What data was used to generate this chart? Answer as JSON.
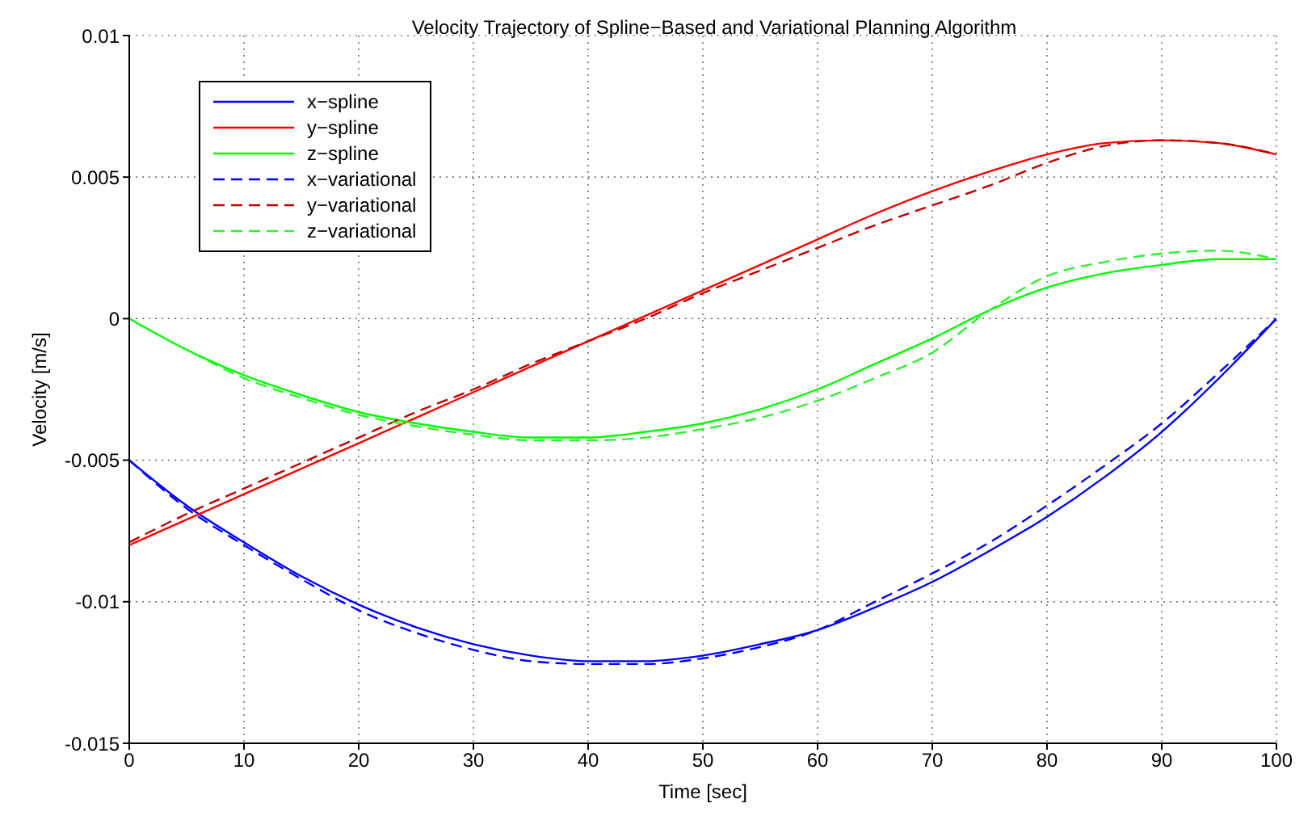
{
  "chart_data": {
    "type": "line",
    "title": "Velocity Trajectory of Spline−Based and Variational Planning Algorithm",
    "xlabel": "Time [sec]",
    "ylabel": "Velocity [m/s]",
    "xlim": [
      0,
      100
    ],
    "xticks": [
      0,
      10,
      20,
      30,
      40,
      50,
      60,
      70,
      80,
      90,
      100
    ],
    "ylim": [
      -0.015,
      0.01
    ],
    "yticks": [
      -0.015,
      -0.01,
      -0.005,
      0,
      0.005,
      0.01
    ],
    "grid": true,
    "legend": "top left",
    "marker": "none",
    "x": [
      0,
      5,
      10,
      15,
      20,
      25,
      30,
      35,
      40,
      45,
      50,
      55,
      60,
      65,
      70,
      75,
      80,
      85,
      90,
      95,
      100
    ],
    "series": [
      {
        "name": "x−spline",
        "color": "#0000ff",
        "line_style": "solid",
        "values": [
          -0.005,
          -0.0066,
          -0.0079,
          -0.0091,
          -0.0101,
          -0.0109,
          -0.0115,
          -0.0119,
          -0.0121,
          -0.0121,
          -0.0119,
          -0.0115,
          -0.011,
          -0.0102,
          -0.0093,
          -0.0082,
          -0.007,
          -0.0056,
          -0.004,
          -0.0021,
          0
        ]
      },
      {
        "name": "y−spline",
        "color": "#ff0000",
        "line_style": "solid",
        "values": [
          -0.008,
          -0.0071,
          -0.0062,
          -0.0053,
          -0.0044,
          -0.0035,
          -0.0026,
          -0.0017,
          -0.0008,
          0.0001,
          0.001,
          0.0019,
          0.0028,
          0.0037,
          0.0045,
          0.0052,
          0.0058,
          0.0062,
          0.0063,
          0.0062,
          0.0058
        ]
      },
      {
        "name": "z−spline",
        "color": "#00ff00",
        "line_style": "solid",
        "values": [
          0,
          -0.0011,
          -0.002,
          -0.0027,
          -0.0033,
          -0.0037,
          -0.004,
          -0.0042,
          -0.0042,
          -0.004,
          -0.0037,
          -0.0032,
          -0.0025,
          -0.0016,
          -0.0007,
          0.0003,
          0.0011,
          0.0016,
          0.0019,
          0.0021,
          0.0021
        ]
      },
      {
        "name": "x−variational",
        "color": "#0000ff",
        "line_style": "dashed",
        "values": [
          -0.005,
          -0.0067,
          -0.008,
          -0.0092,
          -0.0103,
          -0.0111,
          -0.0117,
          -0.0121,
          -0.0122,
          -0.0122,
          -0.012,
          -0.0116,
          -0.011,
          -0.01,
          -0.009,
          -0.0079,
          -0.0066,
          -0.0052,
          -0.0037,
          -0.0019,
          0
        ]
      },
      {
        "name": "y−variational",
        "color": "#c00000",
        "line_style": "dashed",
        "values": [
          -0.0079,
          -0.0069,
          -0.006,
          -0.0051,
          -0.0042,
          -0.0033,
          -0.0025,
          -0.0016,
          -0.0008,
          0,
          0.0009,
          0.0017,
          0.0025,
          0.0033,
          0.004,
          0.0047,
          0.0055,
          0.0061,
          0.0063,
          0.0062,
          0.0058
        ]
      },
      {
        "name": "z−variational",
        "color": "#33ee33",
        "line_style": "dashed",
        "values": [
          0,
          -0.0011,
          -0.0021,
          -0.0028,
          -0.0034,
          -0.0038,
          -0.0041,
          -0.0043,
          -0.0043,
          -0.0042,
          -0.0039,
          -0.0035,
          -0.0029,
          -0.0021,
          -0.0012,
          0.0003,
          0.0015,
          0.002,
          0.0023,
          0.0024,
          0.0021
        ]
      }
    ]
  }
}
